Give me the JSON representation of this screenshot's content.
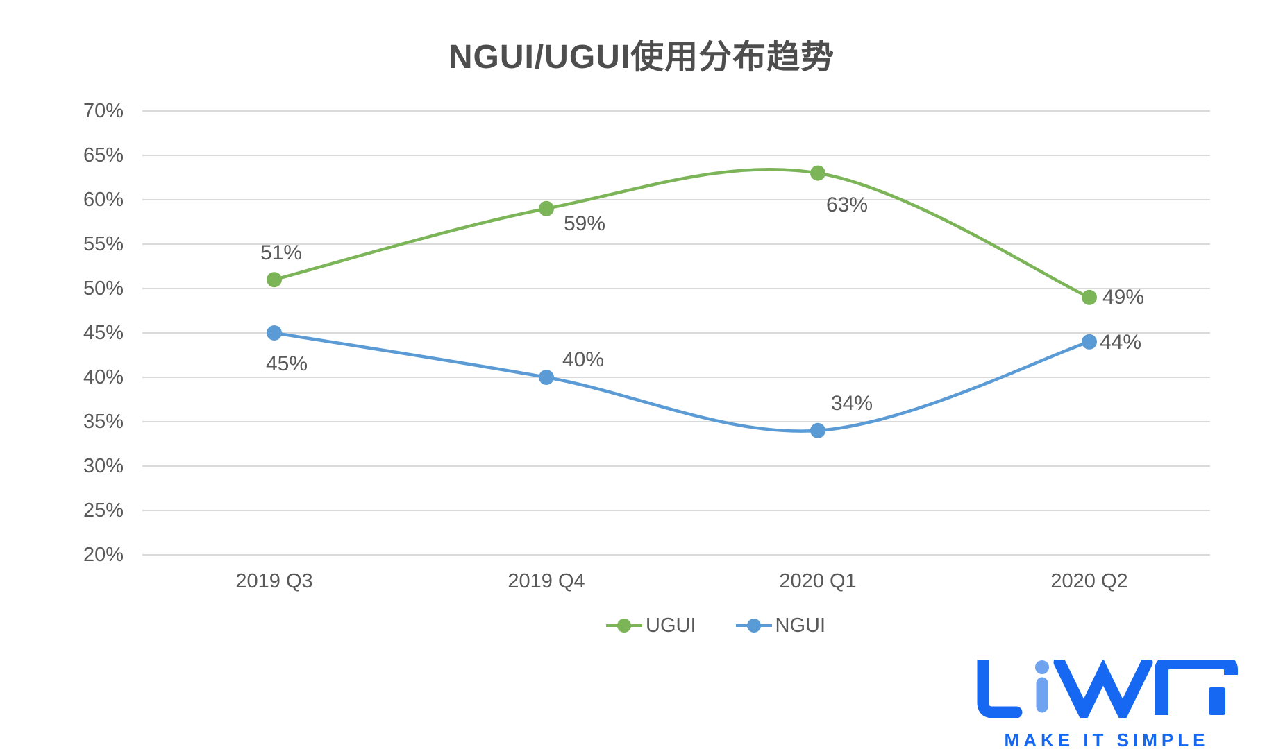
{
  "chart_data": {
    "type": "line",
    "title": "NGUI/UGUI使用分布趋势",
    "categories": [
      "2019 Q3",
      "2019 Q4",
      "2020 Q1",
      "2020 Q2"
    ],
    "series": [
      {
        "name": "UGUI",
        "color": "#7CB458",
        "values": [
          51,
          59,
          63,
          49
        ],
        "labels": [
          "51%",
          "59%",
          "63%",
          "49%"
        ]
      },
      {
        "name": "NGUI",
        "color": "#5B9BD5",
        "values": [
          45,
          40,
          34,
          44
        ],
        "labels": [
          "45%",
          "40%",
          "34%",
          "44%"
        ]
      }
    ],
    "y_axis": {
      "min": 20,
      "max": 70,
      "step": 5,
      "tick_labels": [
        "70%",
        "65%",
        "60%",
        "55%",
        "50%",
        "45%",
        "40%",
        "35%",
        "30%",
        "25%",
        "20%"
      ]
    },
    "grid": true,
    "smooth": true,
    "legend_position": "bottom",
    "colors": {
      "gridline": "#D9D9D9",
      "text": "#595959",
      "title": "#4E4E4E"
    }
  },
  "logo": {
    "brand": "LiWA",
    "tagline": "MAKE IT SIMPLE",
    "color_main": "#1668F2",
    "color_light": "#6FA3EF"
  }
}
